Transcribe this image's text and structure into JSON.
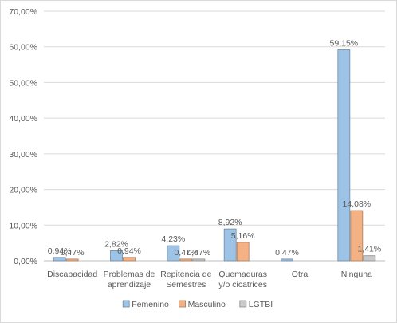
{
  "chart_data": {
    "type": "bar",
    "title": "",
    "xlabel": "",
    "ylabel": "",
    "categories": [
      [
        "Discapacidad"
      ],
      [
        "Problemas de",
        "aprendizaje"
      ],
      [
        "Repitencia de",
        "Semestres"
      ],
      [
        "Quemaduras",
        "y/o cicatrices"
      ],
      [
        "Otra"
      ],
      [
        "Ninguna"
      ]
    ],
    "series": [
      {
        "name": "Femenino",
        "color": "#9dc3e6",
        "values": [
          0.94,
          2.82,
          4.23,
          8.92,
          0.47,
          59.15
        ],
        "labels": [
          "0,94%",
          "2,82%",
          "4,23%",
          "8,92%",
          "0,47%",
          "59,15%"
        ]
      },
      {
        "name": "Masculino",
        "color": "#f4b183",
        "values": [
          0.47,
          0.94,
          0.47,
          5.16,
          0,
          14.08
        ],
        "labels": [
          "0,47%",
          "0,94%",
          "0,47%",
          "5,16%",
          "",
          "14,08%"
        ]
      },
      {
        "name": "LGTBI",
        "color": "#c9c9c9",
        "values": [
          0,
          0,
          0.47,
          0,
          0,
          1.41
        ],
        "labels": [
          "",
          "",
          "0,47%",
          "",
          "",
          "1,41%"
        ]
      }
    ],
    "ylim": [
      0,
      70
    ],
    "yticks": [
      0,
      10,
      20,
      30,
      40,
      50,
      60,
      70
    ],
    "ytick_labels": [
      "0,00%",
      "10,00%",
      "20,00%",
      "30,00%",
      "40,00%",
      "50,00%",
      "60,00%",
      "70,00%"
    ],
    "grid": true,
    "legend_position": "bottom"
  }
}
